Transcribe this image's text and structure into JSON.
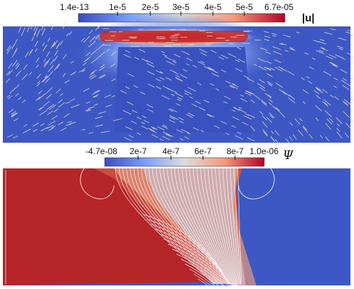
{
  "top_colorbar": {
    "ticks": [
      "1.4e-13",
      "1e-5",
      "2e-5",
      "3e-5",
      "4e-5",
      "5e-5",
      "6.7e-05"
    ],
    "range": [
      1.4e-13,
      6.7e-05
    ],
    "label": "|u|",
    "colormap": "cool-to-warm"
  },
  "bottom_colorbar": {
    "ticks": [
      "-4.7e-08",
      "2e-7",
      "4e-7",
      "6e-7",
      "8e-7",
      "1.0e-06"
    ],
    "range": [
      -4.7e-08,
      1e-06
    ],
    "label": "Ψ",
    "colormap": "cool-to-warm"
  },
  "colors": {
    "low": "#3b4cc0",
    "mid": "#dddddd",
    "high": "#b40426",
    "field_blue": "#3d58c4",
    "field_red": "#b62628",
    "streamline": "#ffffff",
    "arrow": "#e8e0d0"
  }
}
